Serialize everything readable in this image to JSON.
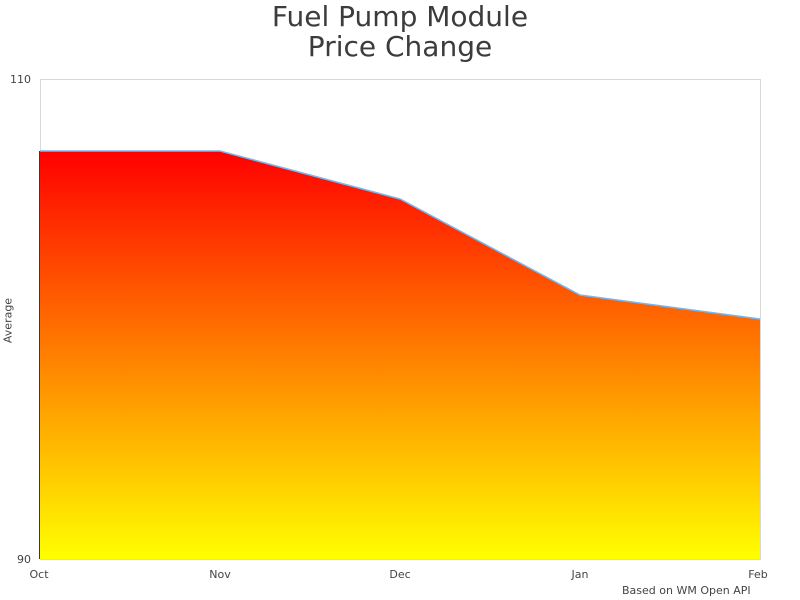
{
  "chart": {
    "title_line1": "Fuel Pump Module",
    "title_line2": "Price Change",
    "ylabel": "Average",
    "credit": "Based on WM Open API",
    "y_tick_top": "110",
    "y_tick_bottom": "90",
    "x_ticks": [
      "Oct",
      "Nov",
      "Dec",
      "Jan",
      "Feb"
    ],
    "colors": {
      "gradient_top": "#ff0000",
      "gradient_bottom": "#ffff00",
      "line": "#7cb5ec",
      "border": "#d8d8d8"
    }
  },
  "chart_data": {
    "type": "area",
    "title": "Fuel Pump Module Price Change",
    "xlabel": "",
    "ylabel": "Average",
    "categories": [
      "Oct",
      "Nov",
      "Dec",
      "Jan",
      "Feb"
    ],
    "series": [
      {
        "name": "Average",
        "values": [
          107,
          107,
          105,
          101,
          100
        ]
      }
    ],
    "ylim": [
      90,
      110
    ],
    "grid": false,
    "legend": "none",
    "annotations": [
      "Based on WM Open API"
    ]
  }
}
